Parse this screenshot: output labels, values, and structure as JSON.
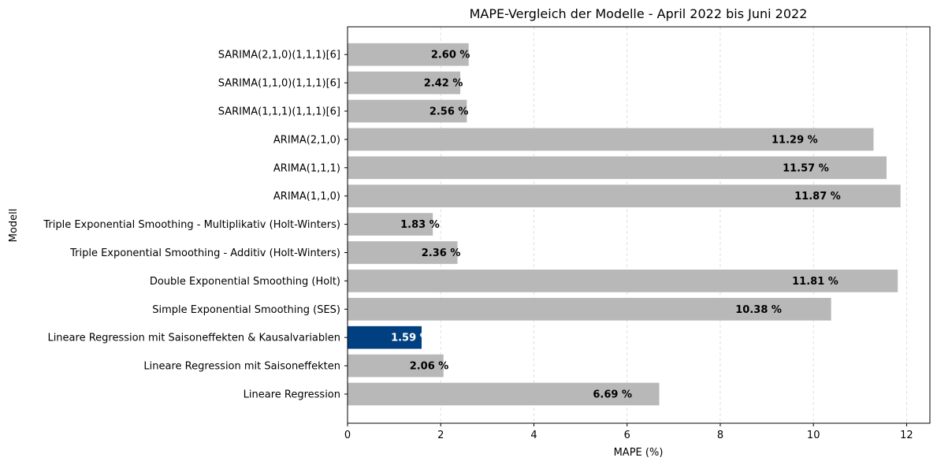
{
  "chart_data": {
    "type": "bar",
    "orientation": "horizontal",
    "title": "MAPE-Vergleich der Modelle - April 2022 bis Juni 2022",
    "xlabel": "MAPE (%)",
    "ylabel": "Modell",
    "xlim": [
      0,
      12.5
    ],
    "xticks": [
      0,
      2,
      4,
      6,
      8,
      10,
      12
    ],
    "grid": "x-dashed",
    "colors": {
      "default": "#b8b8b8",
      "highlight": "#004080"
    },
    "categories": [
      "Lineare Regression",
      "Lineare Regression mit Saisoneffekten",
      "Lineare Regression mit Saisoneffekten & Kausalvariablen",
      "Simple Exponential Smoothing (SES)",
      "Double Exponential Smoothing (Holt)",
      "Triple Exponential Smoothing - Additiv (Holt-Winters)",
      "Triple Exponential Smoothing - Multiplikativ (Holt-Winters)",
      "ARIMA(1,1,0)",
      "ARIMA(1,1,1)",
      "ARIMA(2,1,0)",
      "SARIMA(1,1,1)(1,1,1)[6]",
      "SARIMA(1,1,0)(1,1,1)[6]",
      "SARIMA(2,1,0)(1,1,1)[6]"
    ],
    "values": [
      6.69,
      2.06,
      1.59,
      10.38,
      11.81,
      2.36,
      1.83,
      11.87,
      11.57,
      11.29,
      2.56,
      2.42,
      2.6
    ],
    "labels": [
      "6.69 %",
      "2.06 %",
      "1.59 %",
      "10.38 %",
      "11.81 %",
      "2.36 %",
      "1.83 %",
      "11.87 %",
      "11.57 %",
      "11.29 %",
      "2.56 %",
      "2.42 %",
      "2.60 %"
    ],
    "highlight_index": 2
  }
}
